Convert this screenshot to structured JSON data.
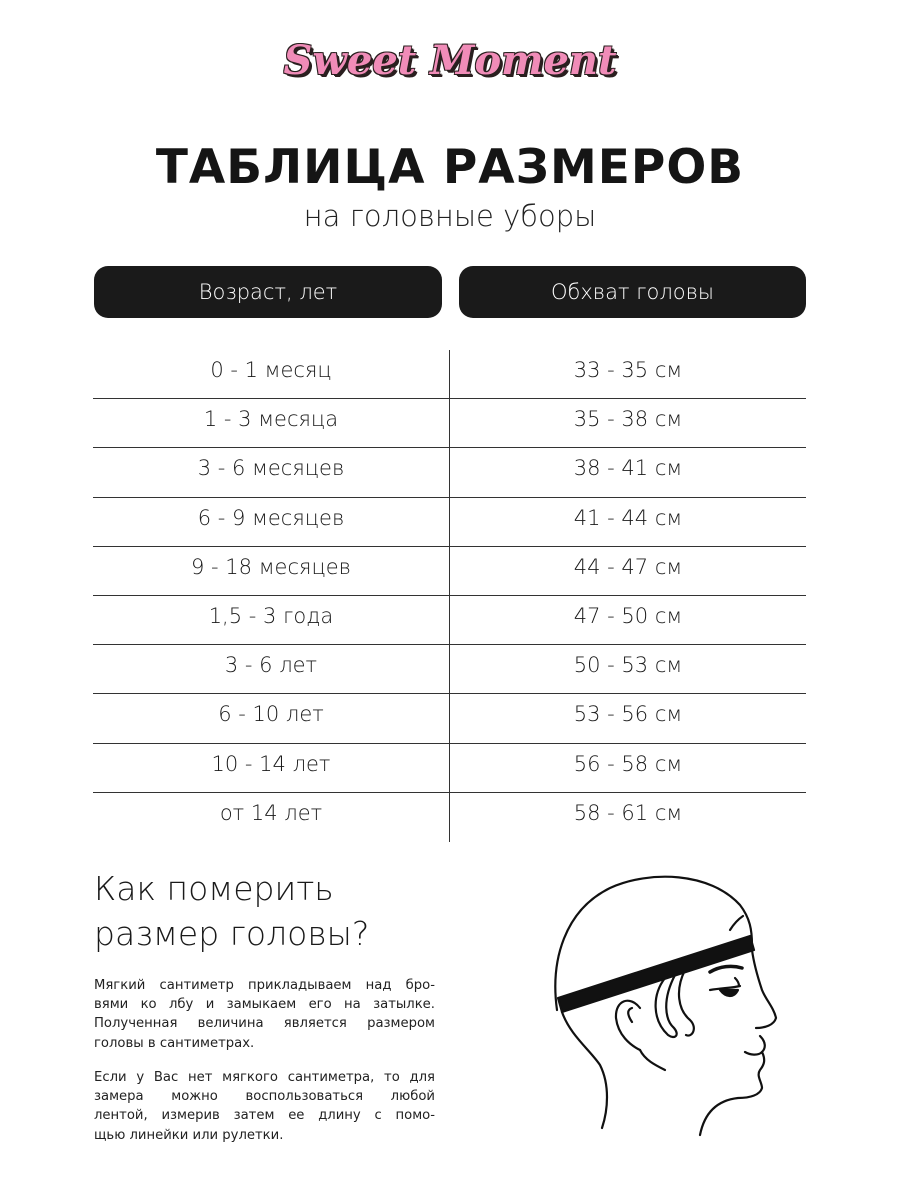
{
  "brand": {
    "logo_text": "Sweet Moment",
    "logo_color": "#f08cb8"
  },
  "title": "ТАБЛИЦА РАЗМЕРОВ",
  "subtitle": "на головные уборы",
  "table": {
    "headers": [
      "Возраст, лет",
      "Обхват головы"
    ],
    "rows": [
      [
        "0 - 1 месяц",
        "33 - 35 см"
      ],
      [
        "1 - 3 месяца",
        "35 - 38 см"
      ],
      [
        "3 - 6 месяцев",
        "38 - 41 см"
      ],
      [
        "6 - 9 месяцев",
        "41 - 44 см"
      ],
      [
        "9 - 18 месяцев",
        "44 - 47 см"
      ],
      [
        "1,5 - 3 года",
        "47 - 50 см"
      ],
      [
        "3 - 6 лет",
        "50 - 53 см"
      ],
      [
        "6 - 10 лет",
        "53 - 56 см"
      ],
      [
        "10 - 14 лет",
        "56 - 58 см"
      ],
      [
        "от 14 лет",
        "58 - 61 см"
      ]
    ]
  },
  "howto": {
    "heading_lines": [
      "Как померить",
      "размер головы?"
    ],
    "paragraph1_lines": [
      "Мягкий сантиметр прикладываем над бро-",
      "вями ко лбу и замыкаем его на затылке.",
      "Полученная величина является размером",
      "головы в сантиметрах."
    ],
    "paragraph2_lines": [
      "Если у Вас нет мягкого сантиметра, то для",
      "замера можно воспользоваться любой",
      "лентой, измерив затем ее длину с помо-",
      "щью линейки или рулетки."
    ]
  },
  "illustration": "head-profile-with-measuring-band"
}
